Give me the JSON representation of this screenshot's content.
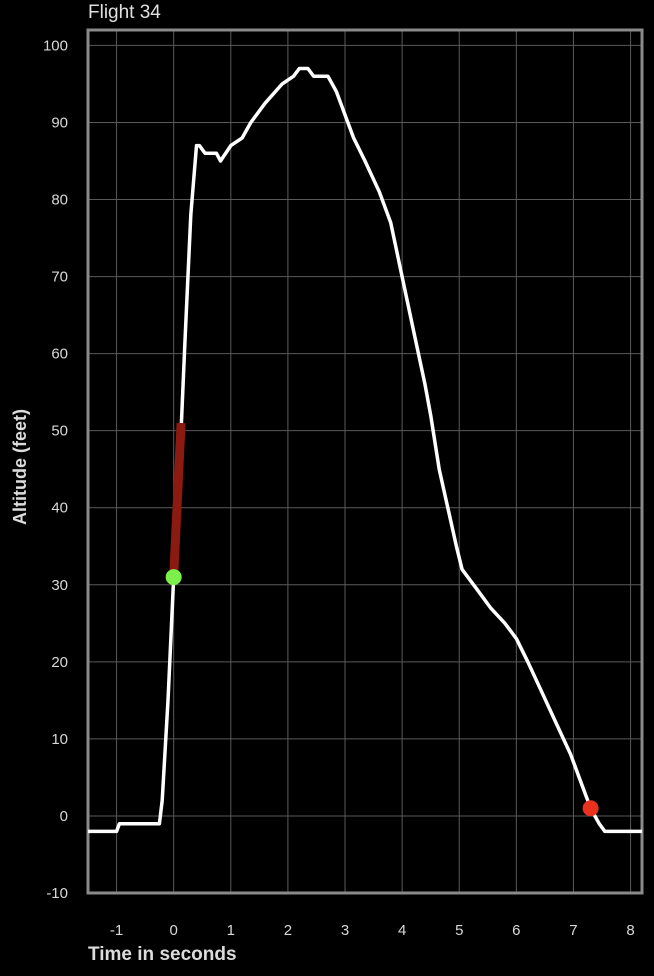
{
  "chart_data": {
    "type": "line",
    "title": "Flight 34",
    "xlabel": "Time in seconds",
    "ylabel": "Altitude (feet)",
    "xlim": [
      -1.5,
      8.2
    ],
    "ylim": [
      -10,
      102
    ],
    "xticks": [
      -1,
      0,
      1,
      2,
      3,
      4,
      5,
      6,
      7,
      8
    ],
    "yticks": [
      -10,
      0,
      10,
      20,
      30,
      40,
      50,
      60,
      70,
      80,
      90,
      100
    ],
    "grid": true,
    "colors": {
      "line": "#ffffff",
      "highlight": "#8b1a10",
      "start_marker": "#7cf04a",
      "end_marker": "#e8321e",
      "grid": "#5a5a5a",
      "frame": "#8a8a8a"
    },
    "series": [
      {
        "values": [
          [
            -1.5,
            -2
          ],
          [
            -1.0,
            -2
          ],
          [
            -0.95,
            -1
          ],
          [
            -0.25,
            -1
          ],
          [
            -0.2,
            2
          ],
          [
            -0.1,
            15
          ],
          [
            0.0,
            31
          ],
          [
            0.1,
            45
          ],
          [
            0.2,
            62
          ],
          [
            0.3,
            78
          ],
          [
            0.4,
            87
          ],
          [
            0.45,
            87
          ],
          [
            0.55,
            86
          ],
          [
            0.75,
            86
          ],
          [
            0.82,
            85
          ],
          [
            1.0,
            87
          ],
          [
            1.2,
            88
          ],
          [
            1.35,
            90
          ],
          [
            1.6,
            92.5
          ],
          [
            1.9,
            95
          ],
          [
            2.1,
            96
          ],
          [
            2.2,
            97
          ],
          [
            2.35,
            97
          ],
          [
            2.45,
            96
          ],
          [
            2.7,
            96
          ],
          [
            2.85,
            94
          ],
          [
            3.0,
            91
          ],
          [
            3.15,
            88
          ],
          [
            3.35,
            85
          ],
          [
            3.6,
            81
          ],
          [
            3.8,
            77
          ],
          [
            4.0,
            70
          ],
          [
            4.2,
            63
          ],
          [
            4.4,
            56
          ],
          [
            4.5,
            52
          ],
          [
            4.65,
            45
          ],
          [
            4.8,
            40
          ],
          [
            4.95,
            35
          ],
          [
            5.05,
            32
          ],
          [
            5.3,
            29.5
          ],
          [
            5.55,
            27
          ],
          [
            5.8,
            25
          ],
          [
            6.0,
            23
          ],
          [
            6.2,
            20
          ],
          [
            6.45,
            16
          ],
          [
            6.7,
            12
          ],
          [
            6.95,
            8
          ],
          [
            7.15,
            4
          ],
          [
            7.3,
            1
          ],
          [
            7.45,
            -1
          ],
          [
            7.55,
            -2
          ],
          [
            8.2,
            -2
          ]
        ]
      }
    ],
    "highlight_segment": [
      [
        0.0,
        31
      ],
      [
        0.13,
        51
      ]
    ],
    "markers": [
      {
        "x": 0.0,
        "y": 31
      },
      {
        "x": 7.3,
        "y": 1
      }
    ]
  }
}
